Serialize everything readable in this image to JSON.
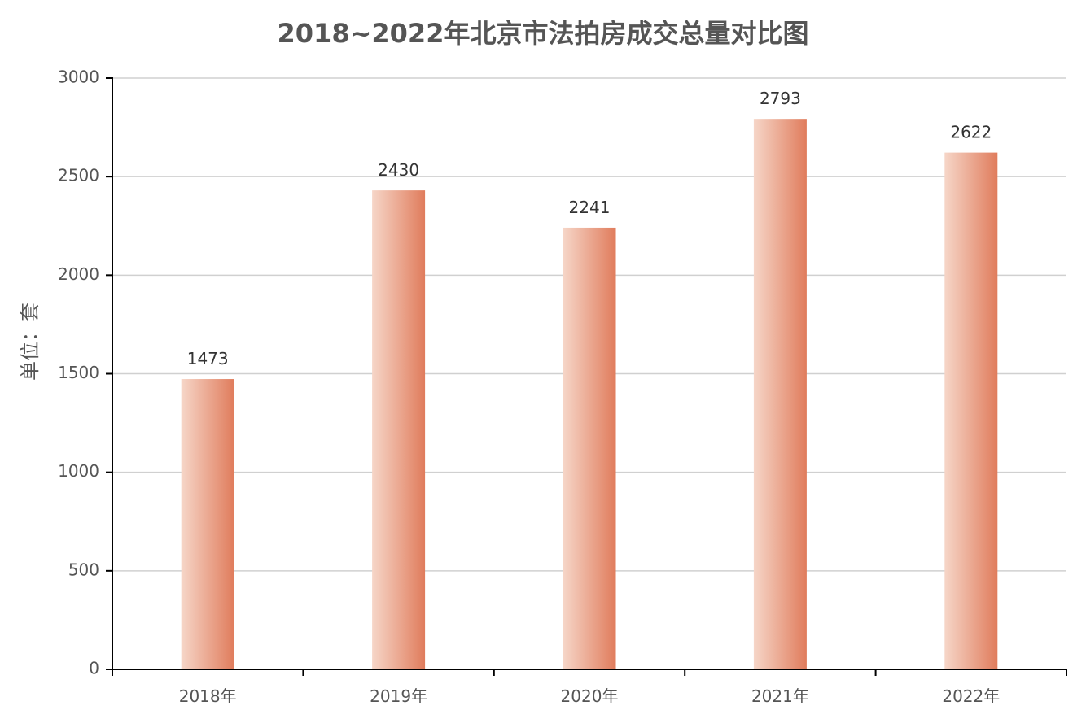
{
  "chart_data": {
    "type": "bar",
    "title": "2018~2022年北京市法拍房成交总量对比图",
    "ylabel": "单位：套",
    "xlabel": "",
    "categories": [
      "2018年",
      "2019年",
      "2020年",
      "2021年",
      "2022年"
    ],
    "values": [
      1473,
      2430,
      2241,
      2793,
      2622
    ],
    "ylim": [
      0,
      3000
    ],
    "yticks": [
      0,
      500,
      1000,
      1500,
      2000,
      2500,
      3000
    ],
    "grid": true,
    "legend": "none",
    "colors": {
      "bar_light": "#f6d6c8",
      "bar_dark": "#e07c5c"
    }
  }
}
